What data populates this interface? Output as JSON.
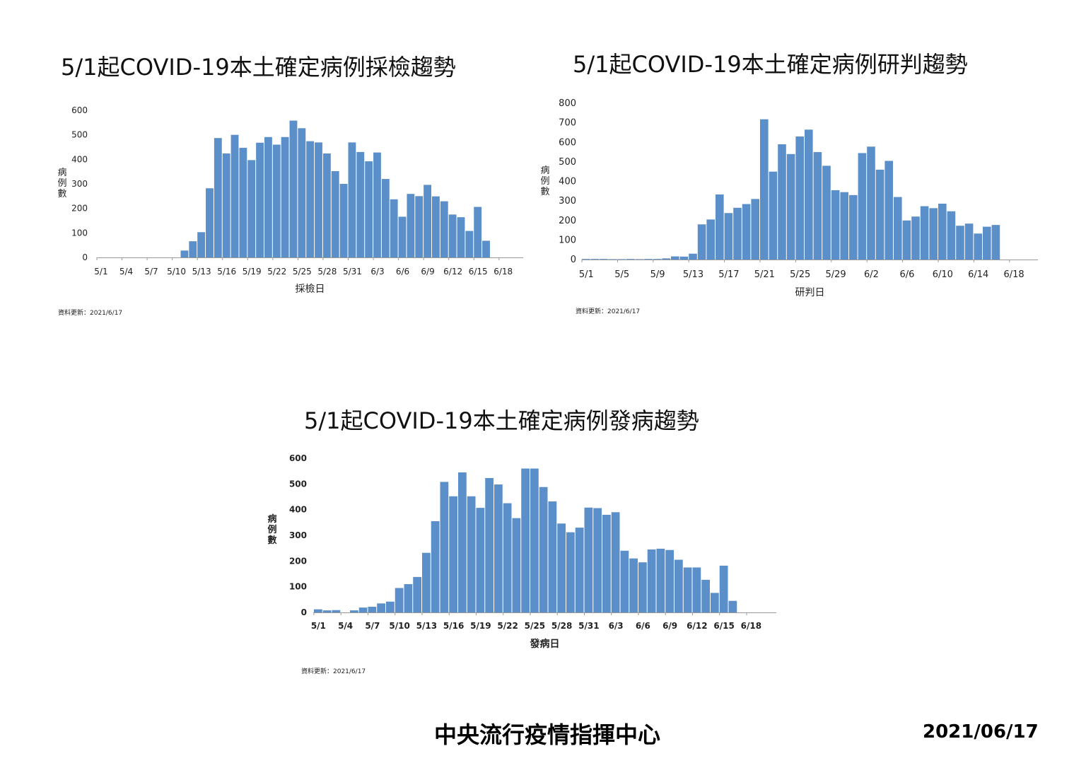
{
  "chart_data": [
    {
      "type": "bar",
      "title": "5/1起COVID-19本土確定病例採檢趨勢",
      "xlabel": "採檢日",
      "ylabel": "病例數",
      "ylim": [
        0,
        600
      ],
      "yticks": [
        0,
        100,
        200,
        300,
        400,
        500,
        600
      ],
      "xtick_labels": [
        "5/1",
        "5/4",
        "5/7",
        "5/10",
        "5/13",
        "5/16",
        "5/19",
        "5/22",
        "5/25",
        "5/28",
        "5/31",
        "6/3",
        "6/6",
        "6/9",
        "6/12",
        "6/15",
        "6/18"
      ],
      "categories": [
        "5/1",
        "5/2",
        "5/3",
        "5/4",
        "5/5",
        "5/6",
        "5/7",
        "5/8",
        "5/9",
        "5/10",
        "5/11",
        "5/12",
        "5/13",
        "5/14",
        "5/15",
        "5/16",
        "5/17",
        "5/18",
        "5/19",
        "5/20",
        "5/21",
        "5/22",
        "5/23",
        "5/24",
        "5/25",
        "5/26",
        "5/27",
        "5/28",
        "5/29",
        "5/30",
        "5/31",
        "6/1",
        "6/2",
        "6/3",
        "6/4",
        "6/5",
        "6/6",
        "6/7",
        "6/8",
        "6/9",
        "6/10",
        "6/11",
        "6/12",
        "6/13",
        "6/14",
        "6/15",
        "6/16",
        "6/17",
        "6/18",
        "6/19",
        "6/20"
      ],
      "values": [
        0,
        0,
        0,
        0,
        0,
        0,
        0,
        0,
        0,
        0,
        28,
        66,
        103,
        282,
        487,
        424,
        500,
        447,
        397,
        468,
        491,
        460,
        491,
        558,
        527,
        474,
        469,
        424,
        352,
        300,
        469,
        430,
        392,
        428,
        320,
        237,
        166,
        259,
        250,
        296,
        249,
        229,
        175,
        164,
        108,
        206,
        68,
        0,
        0,
        0,
        0
      ],
      "update_note": "資料更新：2021/6/17",
      "bar_color": "#5b8fc9"
    },
    {
      "type": "bar",
      "title": "5/1起COVID-19本土確定病例研判趨勢",
      "xlabel": "研判日",
      "ylabel": "病例數",
      "ylim": [
        0,
        800
      ],
      "yticks": [
        0,
        100,
        200,
        300,
        400,
        500,
        600,
        700,
        800
      ],
      "xtick_labels": [
        "5/1",
        "5/5",
        "5/9",
        "5/13",
        "5/17",
        "5/21",
        "5/25",
        "5/29",
        "6/2",
        "6/6",
        "6/10",
        "6/14",
        "6/18"
      ],
      "categories": [
        "5/1",
        "5/2",
        "5/3",
        "5/4",
        "5/5",
        "5/6",
        "5/7",
        "5/8",
        "5/9",
        "5/10",
        "5/11",
        "5/12",
        "5/13",
        "5/14",
        "5/15",
        "5/16",
        "5/17",
        "5/18",
        "5/19",
        "5/20",
        "5/21",
        "5/22",
        "5/23",
        "5/24",
        "5/25",
        "5/26",
        "5/27",
        "5/28",
        "5/29",
        "5/30",
        "5/31",
        "6/1",
        "6/2",
        "6/3",
        "6/4",
        "6/5",
        "6/6",
        "6/7",
        "6/8",
        "6/9",
        "6/10",
        "6/11",
        "6/12",
        "6/13",
        "6/14",
        "6/15",
        "6/16",
        "6/17",
        "6/18",
        "6/19",
        "6/20"
      ],
      "values": [
        3,
        3,
        3,
        2,
        2,
        3,
        2,
        3,
        3,
        6,
        16,
        15,
        30,
        180,
        205,
        333,
        238,
        265,
        284,
        310,
        718,
        450,
        590,
        540,
        630,
        665,
        550,
        480,
        355,
        345,
        330,
        545,
        578,
        460,
        505,
        320,
        200,
        220,
        273,
        263,
        286,
        247,
        173,
        184,
        133,
        168,
        177,
        0,
        0,
        0,
        0
      ],
      "update_note": "資料更新：2021/6/17",
      "bar_color": "#5b8fc9"
    },
    {
      "type": "bar",
      "title": "5/1起COVID-19本土確定病例發病趨勢",
      "xlabel": "發病日",
      "ylabel": "病例數",
      "ylim": [
        0,
        600
      ],
      "yticks": [
        0,
        100,
        200,
        300,
        400,
        500,
        600
      ],
      "xtick_labels": [
        "5/1",
        "5/4",
        "5/7",
        "5/10",
        "5/13",
        "5/16",
        "5/19",
        "5/22",
        "5/25",
        "5/28",
        "5/31",
        "6/3",
        "6/6",
        "6/9",
        "6/12",
        "6/15",
        "6/18"
      ],
      "categories": [
        "5/1",
        "5/2",
        "5/3",
        "5/4",
        "5/5",
        "5/6",
        "5/7",
        "5/8",
        "5/9",
        "5/10",
        "5/11",
        "5/12",
        "5/13",
        "5/14",
        "5/15",
        "5/16",
        "5/17",
        "5/18",
        "5/19",
        "5/20",
        "5/21",
        "5/22",
        "5/23",
        "5/24",
        "5/25",
        "5/26",
        "5/27",
        "5/28",
        "5/29",
        "5/30",
        "5/31",
        "6/1",
        "6/2",
        "6/3",
        "6/4",
        "6/5",
        "6/6",
        "6/7",
        "6/8",
        "6/9",
        "6/10",
        "6/11",
        "6/12",
        "6/13",
        "6/14",
        "6/15",
        "6/16",
        "6/17",
        "6/18",
        "6/19",
        "6/20"
      ],
      "values": [
        12,
        8,
        9,
        0,
        8,
        19,
        22,
        35,
        42,
        95,
        110,
        138,
        232,
        355,
        508,
        452,
        545,
        452,
        407,
        523,
        498,
        425,
        367,
        560,
        560,
        488,
        432,
        346,
        312,
        330,
        408,
        406,
        380,
        390,
        240,
        210,
        195,
        245,
        248,
        243,
        205,
        175,
        175,
        127,
        76,
        182,
        45,
        0,
        0,
        0,
        0
      ],
      "update_note": "資料更新：2021/6/17",
      "bar_color": "#5b8fc9"
    }
  ],
  "footer": {
    "agency": "中央流行疫情指揮中心",
    "date": "2021/06/17"
  }
}
